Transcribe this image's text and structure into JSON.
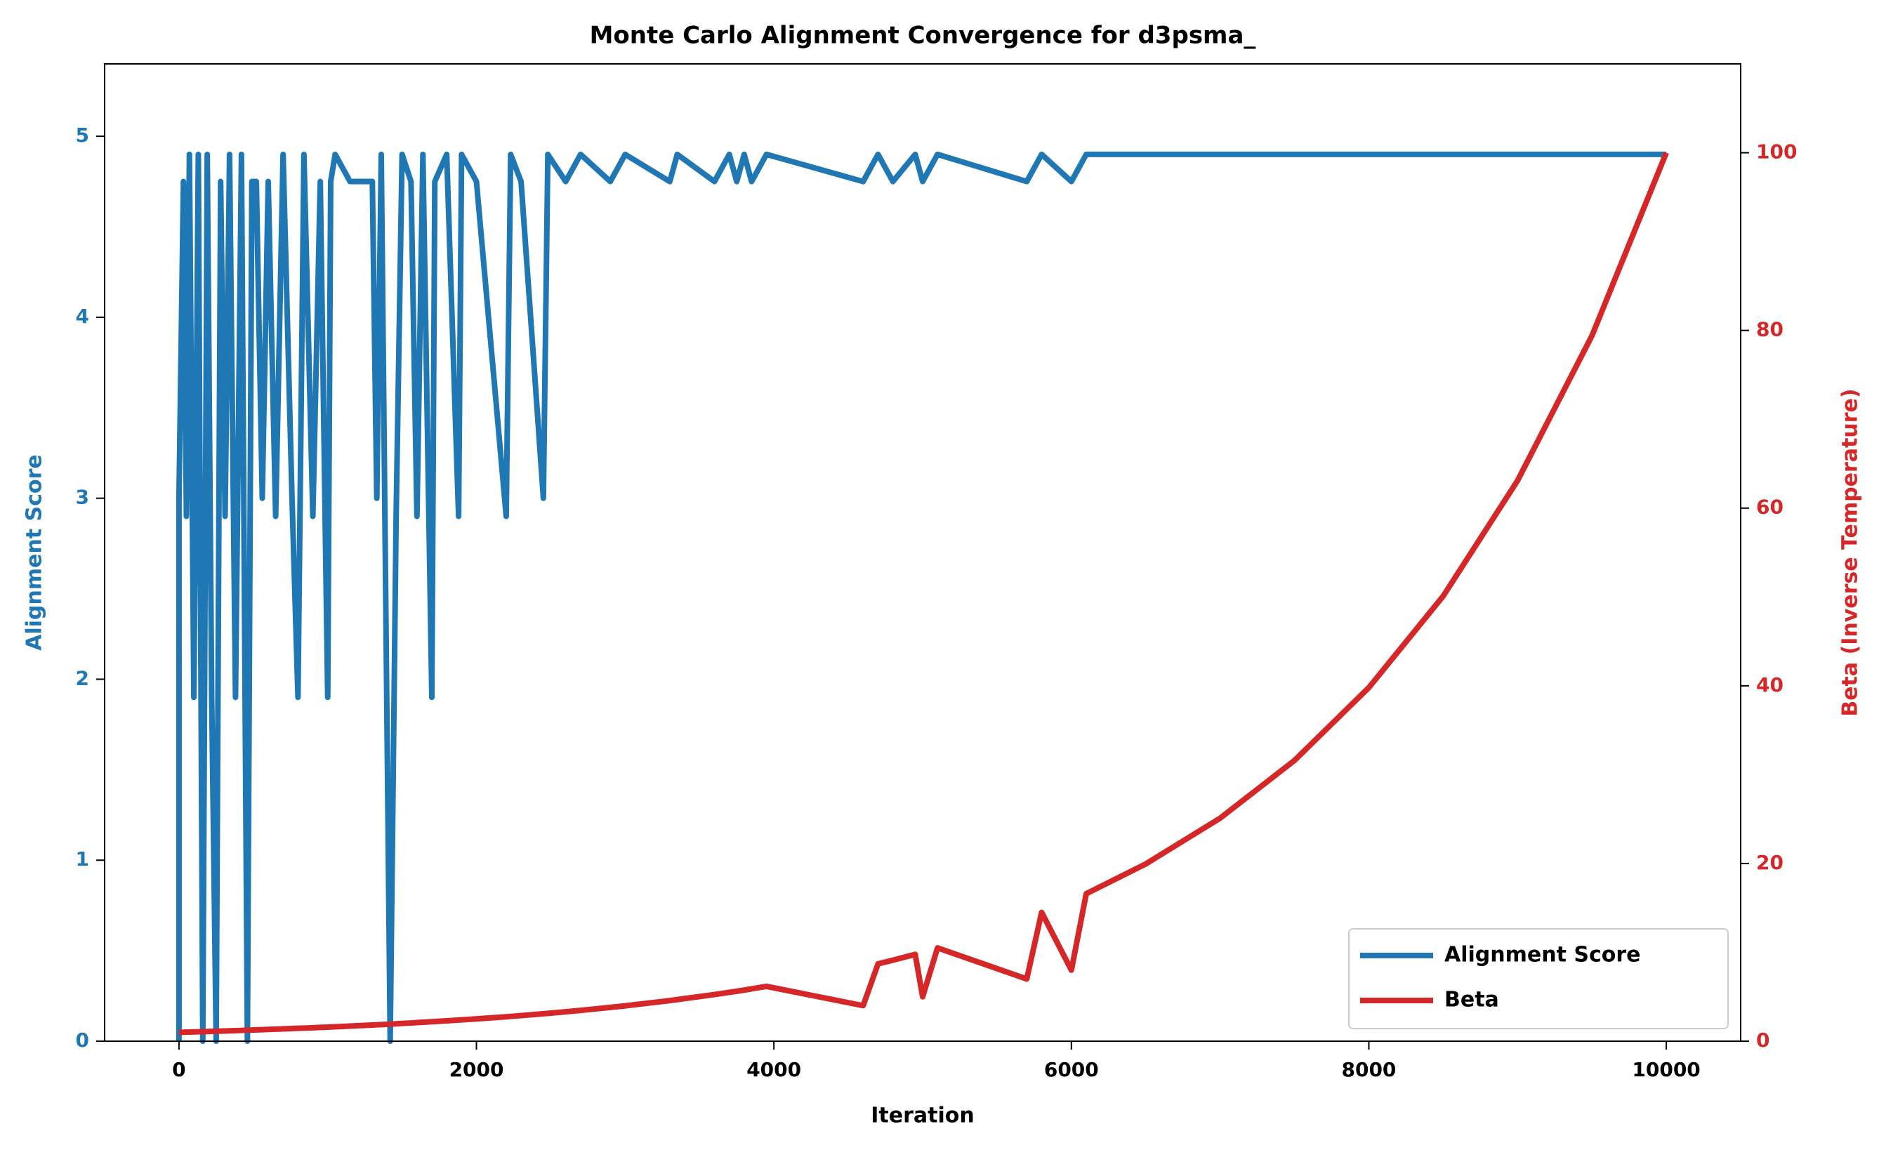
{
  "chart_data": {
    "type": "line",
    "title": "Monte Carlo Alignment Convergence for d3psma_",
    "x_label": "Iteration",
    "y_label": "Alignment Score",
    "y2_label": "Beta (Inverse Temperature)",
    "x": [
      0,
      0,
      30,
      50,
      70,
      100,
      130,
      160,
      190,
      220,
      250,
      280,
      310,
      340,
      380,
      420,
      460,
      490,
      520,
      560,
      600,
      650,
      700,
      760,
      800,
      840,
      900,
      950,
      1000,
      1020,
      1050,
      1150,
      1300,
      1330,
      1360,
      1420,
      1460,
      1500,
      1560,
      1600,
      1640,
      1700,
      1720,
      1800,
      1880,
      1900,
      2000,
      2200,
      2230,
      2300,
      2450,
      2480,
      2600,
      2700,
      2900,
      3000,
      3300,
      3350,
      3600,
      3700,
      3750,
      3800,
      3850,
      3950,
      4600,
      4700,
      4800,
      4950,
      5000,
      5100,
      5700,
      5800,
      6000,
      6100,
      6500,
      7000,
      7500,
      8000,
      8500,
      9000,
      9500,
      10000
    ],
    "series": [
      {
        "name": "Alignment Score",
        "color": "#1f77b4",
        "axis": "y",
        "values": [
          0,
          3,
          4.75,
          2.9,
          4.9,
          1.9,
          4.9,
          0,
          4.9,
          1.9,
          0,
          4.75,
          2.9,
          4.9,
          1.9,
          4.9,
          0,
          4.75,
          4.75,
          3,
          4.75,
          2.9,
          4.9,
          3,
          1.9,
          4.9,
          2.9,
          4.75,
          1.9,
          4.75,
          4.9,
          4.75,
          4.75,
          3,
          4.9,
          0,
          2.9,
          4.9,
          4.75,
          2.9,
          4.9,
          1.9,
          4.75,
          4.9,
          2.9,
          4.9,
          4.75,
          2.9,
          4.9,
          4.75,
          3,
          4.9,
          4.75,
          4.9,
          4.75,
          4.9,
          4.75,
          4.9,
          4.75,
          4.9,
          4.75,
          4.9,
          4.75,
          4.9,
          4.75,
          4.9,
          4.75,
          4.9,
          4.75,
          4.9,
          4.75,
          4.9,
          4.75,
          4.9,
          4.9,
          4.9,
          4.9,
          4.9,
          4.9,
          4.9,
          4.9,
          4.9
        ]
      },
      {
        "name": "Beta",
        "color": "#d62728",
        "axis": "y2",
        "values": [
          1,
          1,
          1.01,
          1.02,
          1.03,
          1.05,
          1.06,
          1.08,
          1.09,
          1.11,
          1.12,
          1.14,
          1.15,
          1.17,
          1.19,
          1.21,
          1.24,
          1.25,
          1.27,
          1.29,
          1.32,
          1.35,
          1.38,
          1.42,
          1.45,
          1.47,
          1.51,
          1.55,
          1.58,
          1.6,
          1.62,
          1.7,
          1.82,
          1.85,
          1.87,
          1.92,
          1.96,
          2,
          2.05,
          2.09,
          2.13,
          2.19,
          2.21,
          2.29,
          2.38,
          2.4,
          2.51,
          2.75,
          2.79,
          2.88,
          3.09,
          3.13,
          3.31,
          3.47,
          3.8,
          3.98,
          4.57,
          4.68,
          5.25,
          5.5,
          5.62,
          5.75,
          5.89,
          6.17,
          4,
          8.7,
          9.12,
          9.77,
          5,
          10.5,
          7,
          14.5,
          8,
          16.6,
          19.95,
          25.1,
          31.6,
          39.8,
          50.1,
          63.1,
          79.4,
          100
        ]
      }
    ],
    "xlim": [
      -500,
      10500
    ],
    "xticks": [
      0,
      2000,
      4000,
      6000,
      8000,
      10000
    ],
    "ylim": [
      0,
      5.4
    ],
    "yticks": [
      0,
      1,
      2,
      3,
      4,
      5
    ],
    "y2lim": [
      0,
      110
    ],
    "y2ticks": [
      0,
      20,
      40,
      60,
      80,
      100
    ],
    "legend": "lower right",
    "grid": false
  }
}
